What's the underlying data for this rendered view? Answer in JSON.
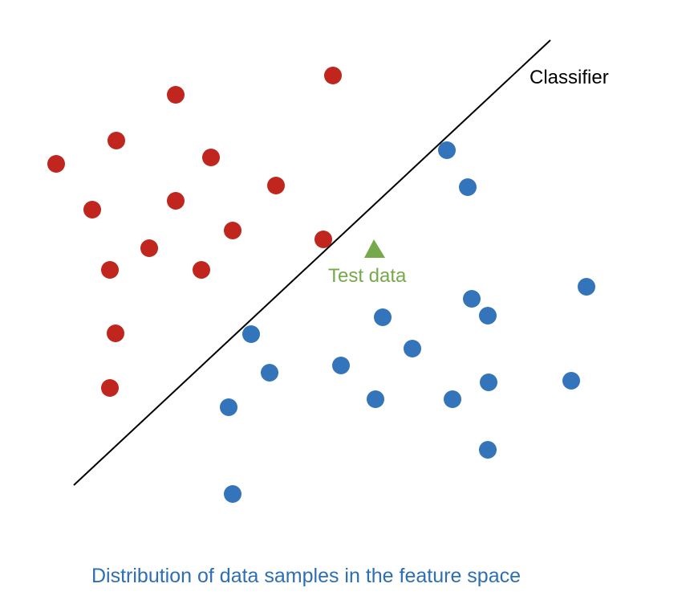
{
  "labels": {
    "classifier": "Classifier",
    "test_data": "Test data",
    "caption": "Distribution of data samples in the feature space"
  },
  "colors": {
    "class_a": "#c0261d",
    "class_b": "#3374bb",
    "test": "#76a94a",
    "line": "#000000",
    "caption": "#2e6fb4"
  },
  "icons": {
    "class_a_point": "circle",
    "class_b_point": "circle",
    "test_point": "triangle"
  }
}
